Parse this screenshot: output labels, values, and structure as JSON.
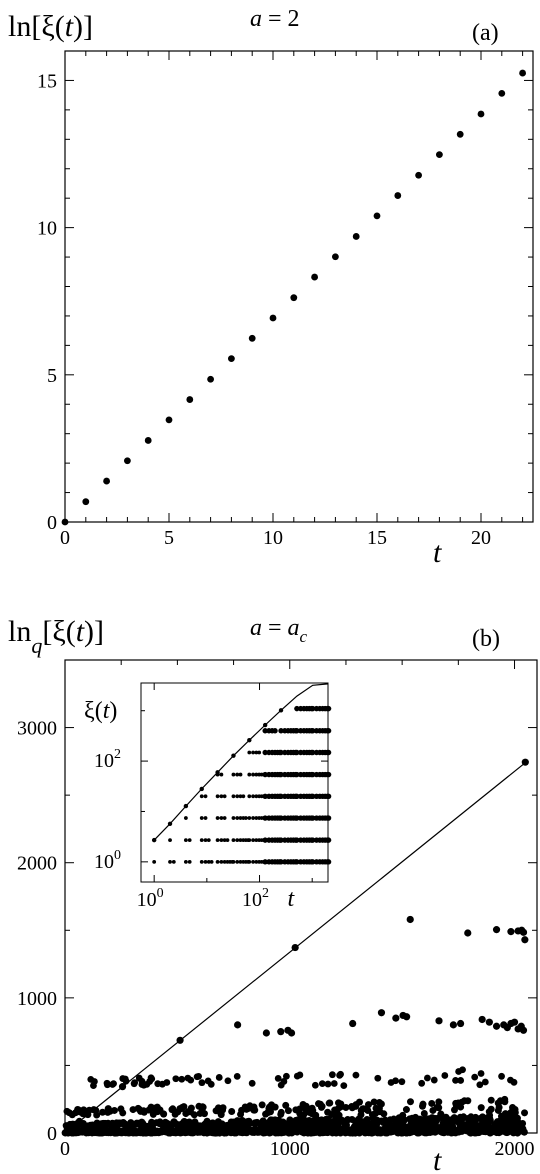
{
  "chart_data": [
    {
      "type": "scatter",
      "panel": "(a)",
      "title_prefix": "a",
      "title_suffix": " = 2",
      "ylabel_pre": "ln[",
      "ylabel_xi": "ξ(",
      "ylabel_t": "t",
      "ylabel_post": ")]",
      "xlabel": "t",
      "xlim": [
        0,
        22.5
      ],
      "ylim": [
        0,
        16
      ],
      "xticks": [
        0,
        5,
        10,
        15,
        20
      ],
      "yticks": [
        0,
        5,
        10,
        15
      ],
      "x": [
        0,
        1,
        2,
        3,
        4,
        5,
        6,
        7,
        8,
        9,
        10,
        11,
        12,
        13,
        14,
        15,
        16,
        17,
        18,
        19,
        20,
        21,
        22
      ],
      "y": [
        0,
        0.69,
        1.39,
        2.08,
        2.77,
        3.47,
        4.16,
        4.85,
        5.55,
        6.24,
        6.93,
        7.62,
        8.32,
        9.01,
        9.7,
        10.4,
        11.09,
        11.78,
        12.48,
        13.17,
        13.86,
        14.56,
        15.25
      ]
    },
    {
      "type": "scatter",
      "panel": "(b)",
      "title_prefix": "a",
      "title_eq": " = ",
      "title_a": "a",
      "title_sub": "c",
      "ylabel_pre": "ln",
      "ylabel_q": "q",
      "ylabel_mid": "[ξ(",
      "ylabel_t": "t",
      "ylabel_post": ")]",
      "xlabel": "t",
      "xlim": [
        0,
        2100
      ],
      "ylim": [
        0,
        3500
      ],
      "xticks": [
        0,
        1000,
        2000
      ],
      "yticks": [
        0,
        1000,
        2000,
        3000
      ],
      "envelope_line": {
        "x": [
          0,
          2048
        ],
        "y": [
          0,
          2740
        ]
      },
      "envelope_points": {
        "x": [
          1,
          2,
          4,
          8,
          16,
          32,
          64,
          128,
          256,
          512,
          1024,
          2048
        ],
        "y": [
          1,
          2.3,
          5,
          10.5,
          21,
          43,
          86,
          172,
          343,
          686,
          1372,
          2744
        ]
      },
      "clusters": [
        {
          "name": "level-1500",
          "x": [
            1536,
            1792,
            1920,
            1984,
            2016,
            2032,
            2040,
            2046
          ],
          "y": [
            1580,
            1480,
            1505,
            1490,
            1495,
            1500,
            1485,
            1430
          ]
        },
        {
          "name": "level-800",
          "x": [
            768,
            896,
            960,
            992,
            1008,
            1280,
            1408,
            1472,
            1504,
            1520,
            1664,
            1728,
            1760,
            1856,
            1888,
            1920,
            1952,
            1968,
            1984,
            2000,
            2016,
            2030,
            2040
          ],
          "y": [
            800,
            740,
            750,
            760,
            740,
            810,
            890,
            850,
            870,
            860,
            830,
            800,
            810,
            840,
            820,
            790,
            800,
            780,
            810,
            820,
            770,
            790,
            760
          ]
        }
      ],
      "inset": {
        "type": "scatter",
        "scale": "log-log",
        "ylabel_xi": "ξ(",
        "ylabel_t": "t",
        "ylabel_post": ")",
        "xlabel": "t",
        "xtick_labels": [
          "10",
          "10"
        ],
        "xtick_exps": [
          "0",
          "2"
        ],
        "ytick_labels": [
          "10",
          "10"
        ],
        "ytick_exps": [
          "0",
          "2"
        ],
        "xlim_log10": [
          -0.25,
          3.3
        ],
        "ylim_log10": [
          -0.4,
          3.55
        ],
        "envelope": {
          "x": [
            1,
            2,
            4,
            8,
            16,
            32,
            64,
            128,
            256,
            512,
            1024,
            2048
          ],
          "y": [
            2.7,
            5.7,
            12.8,
            28,
            60,
            128,
            260,
            520,
            1020,
            1950,
            3200,
            3400
          ]
        },
        "row_values": [
          1,
          2.7,
          7.4,
          20,
          54,
          148,
          400,
          1100
        ]
      }
    }
  ]
}
